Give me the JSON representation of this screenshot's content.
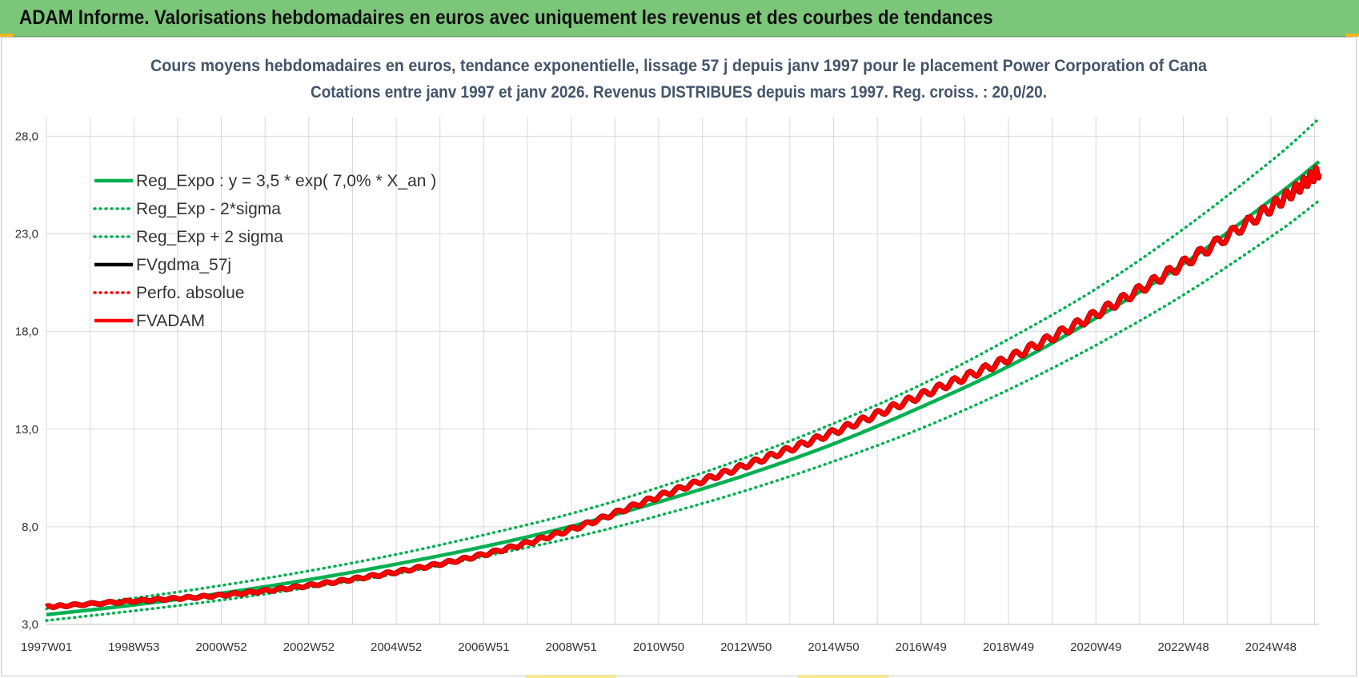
{
  "banner": {
    "title": "ADAM Informe. Valorisations hebdomadaires en euros avec uniquement les revenus et des courbes de tendances"
  },
  "colors": {
    "banner_bg": "#7cc67a",
    "reg_expo": "#00b050",
    "fvadam": "#ff0000",
    "fvadam_outline": "#b00000",
    "perfo": "#ff0000",
    "fvgdma": "#000000",
    "grid": "#d9d9d9"
  },
  "chart_data": {
    "type": "line",
    "title_lines": [
      "Cours moyens hebdomadaires en euros, tendance exponentielle, lissage 57 j depuis janv 1997  pour le  placement Power Corporation of Cana",
      "Cotations entre janv 1997 et janv 2026. Revenus DISTRIBUES depuis mars 1997. Reg. croiss. : 20,0/20."
    ],
    "x_tick_labels": [
      "1997W01",
      "1998W53",
      "2000W52",
      "2002W52",
      "2004W52",
      "2006W51",
      "2008W51",
      "2010W50",
      "2012W50",
      "2014W50",
      "2016W49",
      "2018W49",
      "2020W49",
      "2022W48",
      "2024W48"
    ],
    "x_range_years": [
      1997.0,
      2026.0
    ],
    "y_tick_labels": [
      "3,0",
      "8,0",
      "13,0",
      "18,0",
      "23,0",
      "28,0"
    ],
    "ylim": [
      3.0,
      29.0
    ],
    "y_ticks": [
      3,
      8,
      13,
      18,
      23,
      28
    ],
    "grid": true,
    "legend_position": "top-left",
    "legend": [
      {
        "label": "Reg_Expo : y = 3,5 * exp( 7,0% *  X_an )",
        "style": "solid",
        "color": "#00b050"
      },
      {
        "label": "Reg_Exp - 2*sigma",
        "style": "dotted",
        "color": "#00b050"
      },
      {
        "label": "Reg_Exp + 2 sigma",
        "style": "dotted",
        "color": "#00b050"
      },
      {
        "label": "FVgdma_57j",
        "style": "solid",
        "color": "#000000"
      },
      {
        "label": "Perfo. absolue",
        "style": "dotted",
        "color": "#ff0000"
      },
      {
        "label": "FVADAM",
        "style": "solid",
        "color": "#ff0000"
      }
    ],
    "series": [
      {
        "name": "Reg_Expo : y = 3,5 * exp( 7,0% *  X_an )",
        "x": [
          1997,
          1999,
          2001,
          2003,
          2005,
          2007,
          2009,
          2011,
          2013,
          2015,
          2017,
          2019,
          2021,
          2023,
          2025,
          2026
        ],
        "y": [
          3.5,
          4.0,
          4.6,
          5.3,
          6.1,
          7.0,
          8.05,
          9.3,
          10.7,
          12.3,
          14.2,
          16.3,
          18.8,
          21.6,
          24.9,
          26.7
        ]
      },
      {
        "name": "Reg_Exp - 2*sigma",
        "x": [
          1997,
          1999,
          2001,
          2003,
          2005,
          2007,
          2009,
          2011,
          2013,
          2015,
          2017,
          2019,
          2021,
          2023,
          2025,
          2026
        ],
        "y": [
          3.2,
          3.7,
          4.25,
          4.9,
          5.6,
          6.5,
          7.45,
          8.6,
          9.9,
          11.4,
          13.1,
          15.1,
          17.4,
          20.0,
          23.0,
          24.7
        ]
      },
      {
        "name": "Reg_Exp + 2 sigma",
        "x": [
          1997,
          1999,
          2001,
          2003,
          2005,
          2007,
          2009,
          2011,
          2013,
          2015,
          2017,
          2019,
          2021,
          2023,
          2025,
          2026
        ],
        "y": [
          3.8,
          4.35,
          5.0,
          5.75,
          6.6,
          7.6,
          8.7,
          10.05,
          11.6,
          13.35,
          15.35,
          17.7,
          20.3,
          23.4,
          26.9,
          28.9
        ]
      },
      {
        "name": "FVADAM",
        "x": [
          1997,
          1999,
          2001,
          2003,
          2005,
          2007,
          2009,
          2011,
          2013,
          2015,
          2017,
          2019,
          2021,
          2023,
          2025,
          2026
        ],
        "y": [
          3.9,
          4.2,
          4.5,
          5.0,
          5.7,
          6.6,
          7.9,
          9.6,
          11.2,
          12.9,
          14.8,
          16.7,
          19.0,
          21.6,
          24.5,
          26.2
        ]
      }
    ]
  }
}
